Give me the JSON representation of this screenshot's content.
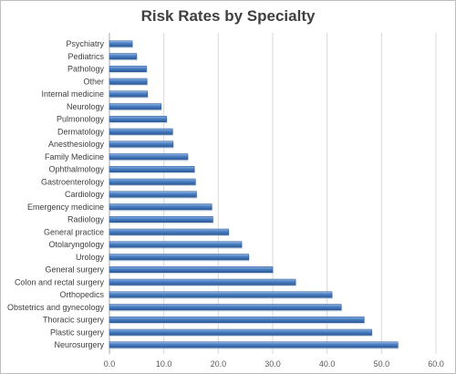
{
  "chart_data": {
    "type": "bar",
    "orientation": "horizontal",
    "title": "Risk Rates by Specialty",
    "xlabel": "",
    "ylabel": "",
    "xlim": [
      0,
      60
    ],
    "xticks": [
      "0.0",
      "10.0",
      "20.0",
      "30.0",
      "40.0",
      "50.0",
      "60.0"
    ],
    "grid": true,
    "legend": "none",
    "bar_color": "#4a7ec2",
    "categories": [
      "Psychiatry",
      "Pediatrics",
      "Pathology",
      "Other",
      "Internal medicine",
      "Neurology",
      "Pulmonology",
      "Dermatology",
      "Anesthesiology",
      "Family Medicine",
      "Ophthalmology",
      "Gastroenterology",
      "Cardiology",
      "Emergency medicine",
      "Radiology",
      "General practice",
      "Otolaryngology",
      "Urology",
      "General surgery",
      "Colon and rectal surgery",
      "Orthopedics",
      "Obstetrics and gynecology",
      "Thoracic surgery",
      "Plastic surgery",
      "Neurosurgery"
    ],
    "values": [
      4.2,
      5.0,
      6.8,
      6.9,
      7.0,
      9.5,
      10.5,
      11.6,
      11.7,
      14.4,
      15.6,
      15.8,
      16.0,
      18.8,
      19.0,
      21.9,
      24.3,
      25.6,
      30.0,
      34.2,
      40.9,
      42.6,
      46.8,
      48.2,
      53.0
    ]
  }
}
